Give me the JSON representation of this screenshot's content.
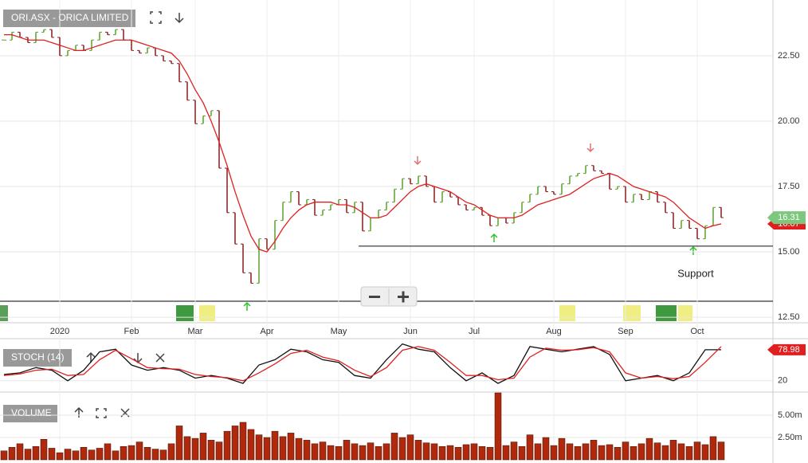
{
  "chart_data": [
    {
      "type": "ohlc",
      "title": "ORI.ASX - ORICA LIMITED",
      "categories": [
        null,
        null,
        null,
        null,
        null,
        null,
        null,
        "2020",
        null,
        null,
        null,
        null,
        null,
        null,
        null,
        null,
        "Feb",
        null,
        null,
        null,
        null,
        null,
        null,
        null,
        "Mar",
        null,
        null,
        null,
        null,
        null,
        null,
        null,
        null,
        "Apr",
        null,
        null,
        null,
        null,
        null,
        null,
        null,
        null,
        "May",
        null,
        null,
        null,
        null,
        null,
        null,
        null,
        null,
        "Jun",
        null,
        null,
        null,
        null,
        null,
        null,
        null,
        "Jul",
        null,
        null,
        null,
        null,
        null,
        null,
        null,
        null,
        null,
        "Aug",
        null,
        null,
        null,
        null,
        null,
        null,
        null,
        null,
        "Sep",
        null,
        null,
        null,
        null,
        null,
        null,
        null,
        null,
        "Oct",
        null,
        null,
        null
      ],
      "values": [
        23.1,
        23.4,
        23.2,
        23.0,
        23.4,
        23.5,
        23.2,
        22.5,
        22.7,
        22.9,
        22.7,
        23.1,
        23.4,
        23.3,
        23.5,
        23.1,
        22.7,
        22.6,
        22.8,
        22.5,
        22.3,
        22.2,
        21.5,
        20.8,
        19.9,
        20.2,
        20.4,
        18.2,
        16.5,
        15.3,
        14.2,
        13.8,
        15.5,
        15.1,
        16.2,
        16.9,
        17.3,
        16.8,
        17.0,
        16.4,
        16.6,
        16.8,
        17.0,
        16.5,
        16.9,
        15.8,
        16.3,
        16.6,
        16.9,
        17.4,
        17.8,
        17.6,
        17.9,
        17.5,
        16.9,
        17.3,
        17.1,
        16.8,
        16.6,
        16.7,
        16.4,
        16.0,
        16.3,
        16.1,
        16.5,
        16.9,
        17.2,
        17.5,
        17.3,
        17.2,
        17.6,
        17.9,
        18.0,
        18.3,
        18.1,
        18.0,
        17.4,
        17.5,
        16.9,
        17.2,
        17.0,
        17.3,
        16.9,
        16.5,
        15.9,
        16.2,
        15.9,
        15.5,
        16.0,
        16.7,
        16.31
      ],
      "ma": [
        23.3,
        23.3,
        23.2,
        23.1,
        23.1,
        23.1,
        23.0,
        22.9,
        22.8,
        22.7,
        22.7,
        22.8,
        22.9,
        23.0,
        23.1,
        23.1,
        23.1,
        23.0,
        22.9,
        22.8,
        22.7,
        22.6,
        22.3,
        21.8,
        21.2,
        20.7,
        20.0,
        19.2,
        18.3,
        17.3,
        16.4,
        15.6,
        15.1,
        15.0,
        15.4,
        15.9,
        16.3,
        16.6,
        16.8,
        16.9,
        16.9,
        16.9,
        16.8,
        16.8,
        16.7,
        16.5,
        16.3,
        16.3,
        16.4,
        16.7,
        17.0,
        17.3,
        17.5,
        17.6,
        17.5,
        17.4,
        17.3,
        17.1,
        16.9,
        16.8,
        16.6,
        16.4,
        16.3,
        16.3,
        16.3,
        16.4,
        16.6,
        16.8,
        16.9,
        17.0,
        17.1,
        17.2,
        17.4,
        17.6,
        17.8,
        17.9,
        18.0,
        17.9,
        17.7,
        17.5,
        17.4,
        17.3,
        17.2,
        17.1,
        16.9,
        16.6,
        16.3,
        16.1,
        15.9,
        16.0,
        16.07
      ],
      "up_color": "#5aa02c",
      "down_color": "#8b1a1a",
      "ma_color": "#e02020",
      "ylim": [
        12.29,
        24.63
      ],
      "yticks": [
        {
          "value": 12.5,
          "label": "12.50"
        },
        {
          "value": 15,
          "label": "15.00"
        },
        {
          "value": 17.5,
          "label": "17.50"
        },
        {
          "value": 20,
          "label": "20.00"
        },
        {
          "value": 22.5,
          "label": "22.50"
        }
      ],
      "grid": true,
      "support": 15.22,
      "annotation": "Support"
    },
    {
      "type": "line",
      "title": "STOCH (14)",
      "ylim": [
        0,
        100
      ],
      "yticks": [
        20
      ],
      "series": [
        {
          "color": "#111111",
          "values": [
            32,
            35,
            45,
            40,
            20,
            40,
            75,
            80,
            50,
            40,
            45,
            40,
            25,
            30,
            25,
            15,
            50,
            60,
            80,
            75,
            60,
            55,
            30,
            25,
            60,
            90,
            80,
            75,
            45,
            20,
            35,
            15,
            30,
            85,
            80,
            75,
            80,
            85,
            70,
            20,
            25,
            30,
            20,
            35,
            78.98,
            78.98
          ]
        },
        {
          "color": "#e02020",
          "values": [
            30,
            33,
            40,
            42,
            30,
            32,
            60,
            78,
            62,
            45,
            43,
            42,
            32,
            28,
            26,
            20,
            35,
            52,
            72,
            78,
            65,
            58,
            40,
            28,
            45,
            78,
            85,
            78,
            55,
            30,
            30,
            22,
            25,
            65,
            82,
            78,
            79,
            83,
            75,
            35,
            25,
            28,
            24,
            28,
            55,
            85
          ]
        }
      ]
    },
    {
      "type": "bar",
      "title": "VOLUME",
      "color": "#b0290c",
      "ylim": [
        0,
        7.5
      ],
      "yticks": [
        {
          "value": 2.5,
          "label": "2.50m"
        },
        {
          "value": 5,
          "label": "5.00m"
        }
      ],
      "values": [
        1.0,
        1.4,
        1.8,
        1.2,
        1.5,
        2.3,
        1.3,
        0.8,
        1.2,
        1.0,
        1.4,
        1.1,
        1.3,
        1.8,
        1.0,
        1.5,
        1.6,
        2.0,
        1.4,
        1.2,
        1.1,
        1.8,
        3.8,
        2.6,
        2.4,
        3.0,
        2.2,
        2.0,
        3.2,
        3.8,
        4.2,
        3.4,
        2.8,
        2.5,
        3.2,
        2.6,
        3.0,
        2.4,
        2.2,
        1.8,
        2.0,
        1.6,
        1.5,
        2.2,
        1.8,
        1.6,
        1.9,
        1.5,
        1.8,
        3.0,
        2.5,
        2.8,
        2.2,
        1.9,
        1.8,
        1.5,
        1.6,
        1.4,
        1.7,
        1.8,
        1.5,
        1.4,
        7.5,
        1.6,
        2.0,
        1.5,
        2.8,
        1.8,
        2.5,
        1.6,
        2.4,
        1.8,
        1.5,
        1.8,
        2.2,
        1.6,
        1.7,
        1.4,
        2.0,
        1.5,
        1.8,
        2.4,
        1.9,
        1.6,
        2.2,
        1.8,
        1.5,
        2.0,
        1.7,
        2.6,
        2.0
      ]
    }
  ]
}
